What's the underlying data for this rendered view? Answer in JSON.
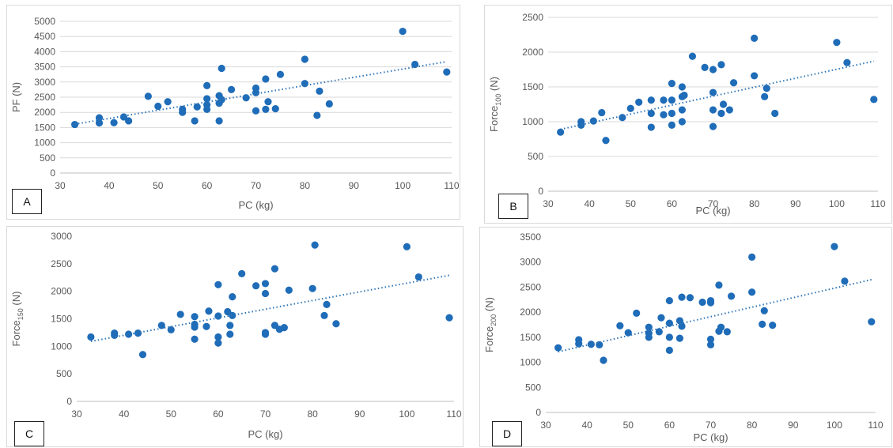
{
  "colors": {
    "marker": "#1f6cb8",
    "trendline": "#2e75b6",
    "grid": "#d9d9d9",
    "text": "#595959"
  },
  "chart_data": [
    {
      "type": "scatter",
      "panel_label": "A",
      "xlabel": "PC (kg)",
      "ylabel": {
        "main": "PF (N)",
        "sub": "",
        "unit": ""
      },
      "xlim": [
        30,
        110
      ],
      "xticks": [
        30,
        40,
        50,
        60,
        70,
        80,
        90,
        100,
        110
      ],
      "ylim": [
        0,
        5000
      ],
      "yticks": [
        0,
        500,
        1000,
        1500,
        2000,
        2500,
        3000,
        3500,
        4000,
        4500,
        5000
      ],
      "grid": "horizontal",
      "trendline": {
        "type": "linear",
        "x": [
          33,
          109
        ],
        "y": [
          1610,
          3670
        ]
      },
      "points": [
        [
          33,
          1600
        ],
        [
          38,
          1650
        ],
        [
          38,
          1820
        ],
        [
          41,
          1660
        ],
        [
          43,
          1850
        ],
        [
          44,
          1720
        ],
        [
          48,
          2530
        ],
        [
          50,
          2200
        ],
        [
          52,
          2350
        ],
        [
          55,
          2000
        ],
        [
          55,
          2100
        ],
        [
          57.5,
          1720
        ],
        [
          58,
          2180
        ],
        [
          60,
          2100
        ],
        [
          60,
          2250
        ],
        [
          60,
          2450
        ],
        [
          60,
          2880
        ],
        [
          62.5,
          1720
        ],
        [
          62.5,
          2300
        ],
        [
          62.5,
          2550
        ],
        [
          63,
          2420
        ],
        [
          63,
          3450
        ],
        [
          65,
          2750
        ],
        [
          68,
          2480
        ],
        [
          70,
          2050
        ],
        [
          70,
          2650
        ],
        [
          70,
          2800
        ],
        [
          72,
          2100
        ],
        [
          72,
          3100
        ],
        [
          72.5,
          2350
        ],
        [
          74,
          2120
        ],
        [
          75,
          3250
        ],
        [
          80,
          2950
        ],
        [
          80,
          3750
        ],
        [
          82.5,
          1900
        ],
        [
          83,
          2700
        ],
        [
          85,
          2280
        ],
        [
          100,
          4670
        ],
        [
          102.5,
          3580
        ],
        [
          109,
          3330
        ]
      ]
    },
    {
      "type": "scatter",
      "panel_label": "B",
      "xlabel": "PC (kg)",
      "ylabel": {
        "main": "Force",
        "sub": "100",
        "unit": " (N)"
      },
      "xlim": [
        30,
        110
      ],
      "xticks": [
        30,
        40,
        50,
        60,
        70,
        80,
        90,
        100,
        110
      ],
      "ylim": [
        0,
        2500
      ],
      "yticks": [
        0,
        500,
        1000,
        1500,
        2000,
        2500
      ],
      "grid": "horizontal",
      "trendline": {
        "type": "linear",
        "x": [
          33,
          109
        ],
        "y": [
          890,
          1870
        ]
      },
      "points": [
        [
          33,
          850
        ],
        [
          38,
          950
        ],
        [
          38,
          1000
        ],
        [
          41,
          1010
        ],
        [
          43,
          1130
        ],
        [
          44,
          730
        ],
        [
          48,
          1060
        ],
        [
          50,
          1190
        ],
        [
          52,
          1280
        ],
        [
          55,
          920
        ],
        [
          55,
          1120
        ],
        [
          55,
          1310
        ],
        [
          58,
          1100
        ],
        [
          58,
          1310
        ],
        [
          60,
          950
        ],
        [
          60,
          1120
        ],
        [
          60,
          1310
        ],
        [
          60,
          1550
        ],
        [
          62.5,
          1000
        ],
        [
          62.5,
          1170
        ],
        [
          62.5,
          1360
        ],
        [
          62.5,
          1500
        ],
        [
          63,
          1380
        ],
        [
          65,
          1940
        ],
        [
          68,
          1780
        ],
        [
          70,
          930
        ],
        [
          70,
          1170
        ],
        [
          70,
          1420
        ],
        [
          70,
          1750
        ],
        [
          72,
          1120
        ],
        [
          72,
          1820
        ],
        [
          72.5,
          1250
        ],
        [
          74,
          1170
        ],
        [
          75,
          1560
        ],
        [
          80,
          1660
        ],
        [
          80,
          2200
        ],
        [
          82.5,
          1360
        ],
        [
          83,
          1480
        ],
        [
          85,
          1120
        ],
        [
          100,
          2140
        ],
        [
          102.5,
          1850
        ],
        [
          109,
          1320
        ]
      ]
    },
    {
      "type": "scatter",
      "panel_label": "C",
      "xlabel": "PC (kg)",
      "ylabel": {
        "main": "Force",
        "sub": "150",
        "unit": " (N)"
      },
      "xlim": [
        30,
        110
      ],
      "xticks": [
        30,
        40,
        50,
        60,
        70,
        80,
        90,
        100,
        110
      ],
      "ylim": [
        0,
        3000
      ],
      "yticks": [
        0,
        500,
        1000,
        1500,
        2000,
        2500,
        3000
      ],
      "grid": "none",
      "trendline": {
        "type": "linear",
        "x": [
          33,
          109
        ],
        "y": [
          1090,
          2290
        ]
      },
      "points": [
        [
          33,
          1170
        ],
        [
          38,
          1200
        ],
        [
          38,
          1240
        ],
        [
          41,
          1220
        ],
        [
          43,
          1240
        ],
        [
          44,
          850
        ],
        [
          48,
          1380
        ],
        [
          50,
          1300
        ],
        [
          52,
          1580
        ],
        [
          55,
          1130
        ],
        [
          55,
          1350
        ],
        [
          55,
          1400
        ],
        [
          55,
          1540
        ],
        [
          57.5,
          1360
        ],
        [
          58,
          1640
        ],
        [
          60,
          1060
        ],
        [
          60,
          1170
        ],
        [
          60,
          1550
        ],
        [
          60,
          2120
        ],
        [
          62,
          1630
        ],
        [
          62.5,
          1220
        ],
        [
          62.5,
          1380
        ],
        [
          63,
          1560
        ],
        [
          63,
          1900
        ],
        [
          65,
          2320
        ],
        [
          68,
          2100
        ],
        [
          70,
          1220
        ],
        [
          70,
          1250
        ],
        [
          70,
          1960
        ],
        [
          70,
          2140
        ],
        [
          72,
          1380
        ],
        [
          72,
          2410
        ],
        [
          73,
          1310
        ],
        [
          74,
          1340
        ],
        [
          75,
          2020
        ],
        [
          80,
          2050
        ],
        [
          80.5,
          2840
        ],
        [
          82.5,
          1560
        ],
        [
          83,
          1760
        ],
        [
          85,
          1410
        ],
        [
          100,
          2810
        ],
        [
          102.5,
          2260
        ],
        [
          109,
          1520
        ]
      ]
    },
    {
      "type": "scatter",
      "panel_label": "D",
      "xlabel": "PC (kg)",
      "ylabel": {
        "main": "Force",
        "sub": "200",
        "unit": " (N)"
      },
      "xlim": [
        30,
        110
      ],
      "xticks": [
        30,
        40,
        50,
        60,
        70,
        80,
        90,
        100,
        110
      ],
      "ylim": [
        0,
        3500
      ],
      "yticks": [
        0,
        500,
        1000,
        1500,
        2000,
        2500,
        3000,
        3500
      ],
      "grid": "none",
      "trendline": {
        "type": "linear",
        "x": [
          33,
          109
        ],
        "y": [
          1210,
          2650
        ]
      },
      "points": [
        [
          33,
          1290
        ],
        [
          38,
          1370
        ],
        [
          38,
          1450
        ],
        [
          41,
          1360
        ],
        [
          43,
          1350
        ],
        [
          44,
          1040
        ],
        [
          48,
          1730
        ],
        [
          50,
          1590
        ],
        [
          52,
          1980
        ],
        [
          55,
          1500
        ],
        [
          55,
          1580
        ],
        [
          55,
          1700
        ],
        [
          57.5,
          1610
        ],
        [
          58,
          1890
        ],
        [
          60,
          1240
        ],
        [
          60,
          1500
        ],
        [
          60,
          1780
        ],
        [
          60,
          2230
        ],
        [
          62.5,
          1480
        ],
        [
          62.5,
          1830
        ],
        [
          63,
          1720
        ],
        [
          63,
          2300
        ],
        [
          65,
          2290
        ],
        [
          68,
          2200
        ],
        [
          70,
          1350
        ],
        [
          70,
          1460
        ],
        [
          70,
          2190
        ],
        [
          70,
          2230
        ],
        [
          72,
          1620
        ],
        [
          72,
          2540
        ],
        [
          72.5,
          1700
        ],
        [
          74,
          1610
        ],
        [
          75,
          2320
        ],
        [
          80,
          2400
        ],
        [
          80,
          3100
        ],
        [
          82.5,
          1760
        ],
        [
          83,
          2030
        ],
        [
          85,
          1740
        ],
        [
          100,
          3310
        ],
        [
          102.5,
          2620
        ],
        [
          109,
          1810
        ]
      ]
    }
  ]
}
